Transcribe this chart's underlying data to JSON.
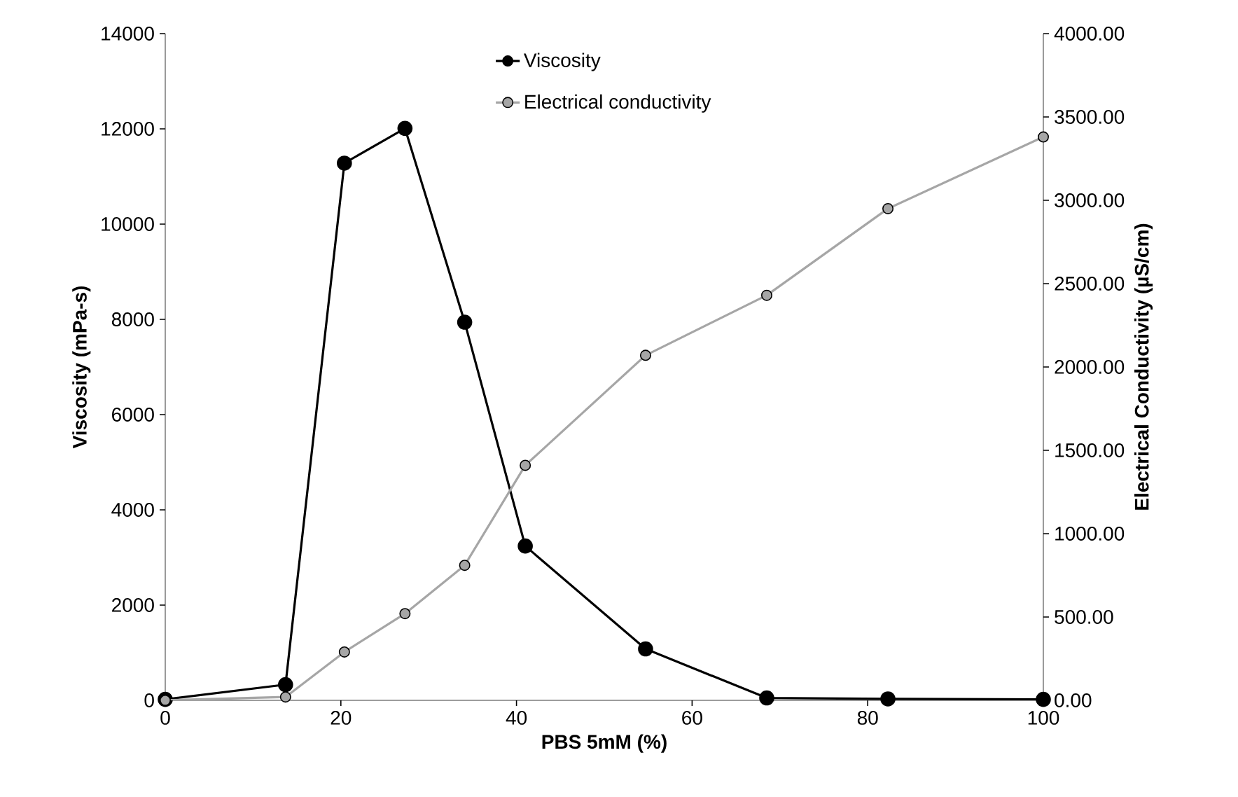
{
  "chart_data": {
    "type": "line",
    "xlabel": "PBS 5mM (%)",
    "ylabel": "Viscosity (mPa-s)",
    "y2label": "Electrical Conductivity (µS/cm)",
    "series": [
      {
        "name": "Viscosity",
        "color": "#000000",
        "marker": "circle",
        "x": [
          0,
          13.7,
          20.4,
          27.3,
          34.1,
          41.0,
          54.7,
          68.5,
          82.3,
          100
        ],
        "values": [
          20,
          330,
          11280,
          12010,
          7940,
          3240,
          1080,
          50,
          30,
          20
        ]
      },
      {
        "name": "Electrical conductivity",
        "color": "#a6a6a6",
        "marker": "circle",
        "axis": "y2",
        "x": [
          0,
          13.7,
          20.4,
          27.3,
          34.1,
          41.0,
          54.7,
          68.5,
          82.3,
          100
        ],
        "values": [
          0,
          20,
          290,
          520,
          810,
          1410,
          2070,
          2430,
          2950,
          3380
        ]
      }
    ],
    "xlim": [
      0,
      100
    ],
    "xticks": [
      0,
      20,
      40,
      60,
      80,
      100
    ],
    "ylim": [
      0,
      14000
    ],
    "yticks": [
      0,
      2000,
      4000,
      6000,
      8000,
      10000,
      12000,
      14000
    ],
    "y2lim": [
      0,
      4000
    ],
    "y2ticks": [
      {
        "value": 0,
        "label": "0.00"
      },
      {
        "value": 500,
        "label": "500.00"
      },
      {
        "value": 1000,
        "label": "1000.00"
      },
      {
        "value": 1500,
        "label": "1500.00"
      },
      {
        "value": 2000,
        "label": "2000.00"
      },
      {
        "value": 2500,
        "label": "2500.00"
      },
      {
        "value": 3000,
        "label": "3000.00"
      },
      {
        "value": 3500,
        "label": "3500.00"
      },
      {
        "value": 4000,
        "label": "4000.00"
      }
    ],
    "grid": false,
    "legend": "top",
    "line_style": "solid"
  }
}
